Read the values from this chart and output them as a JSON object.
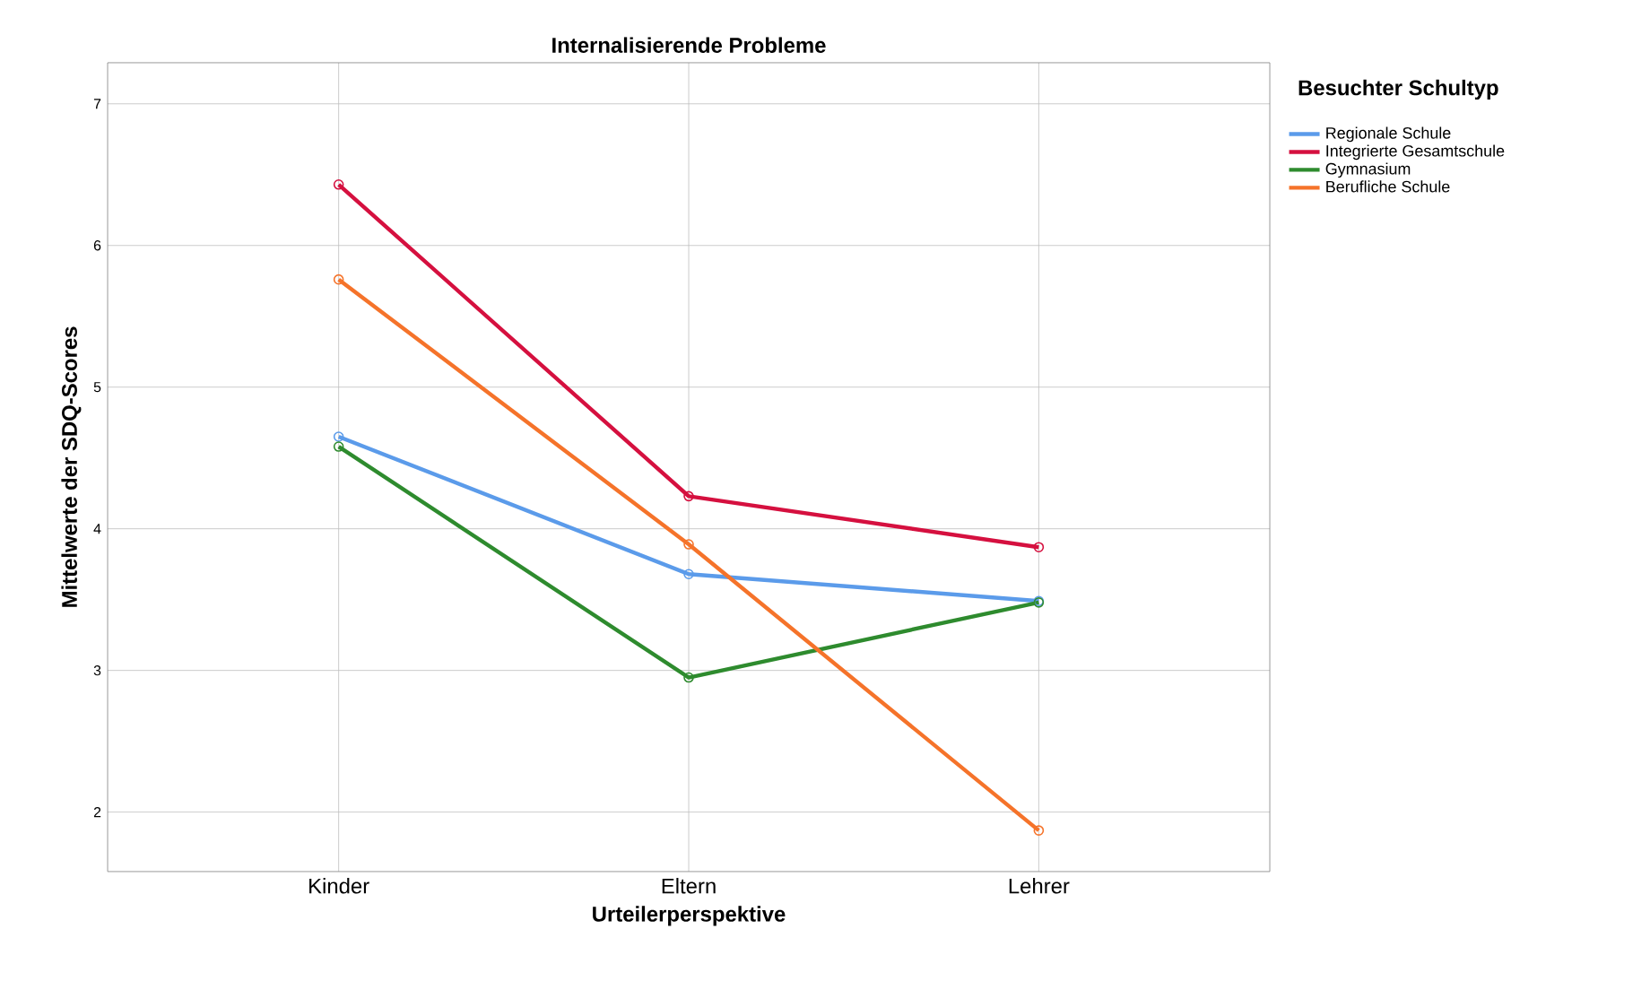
{
  "chart_data": {
    "type": "line",
    "title": "Internalisierende Probleme",
    "xlabel": "Urteilerperspektive",
    "ylabel": "Mittelwerte der SDQ-Scores",
    "legend_title": "Besuchter Schultyp",
    "categories": [
      "Kinder",
      "Eltern",
      "Lehrer"
    ],
    "series": [
      {
        "name": "Regionale Schule",
        "color": "#5b9bea",
        "values": [
          4.65,
          3.68,
          3.49
        ]
      },
      {
        "name": "Integrierte Gesamtschule",
        "color": "#d5103f",
        "values": [
          6.43,
          4.23,
          3.87
        ]
      },
      {
        "name": "Gymnasium",
        "color": "#2e8b2e",
        "values": [
          4.58,
          2.95,
          3.48
        ]
      },
      {
        "name": "Berufliche Schule",
        "color": "#f5732a",
        "values": [
          5.76,
          3.89,
          1.87
        ]
      }
    ],
    "ylim": [
      1.58,
      7.29
    ],
    "yticks": [
      2,
      3,
      4,
      5,
      6,
      7
    ],
    "grid": true,
    "legend": "top right",
    "marker": "circle",
    "line_style": "solid"
  }
}
